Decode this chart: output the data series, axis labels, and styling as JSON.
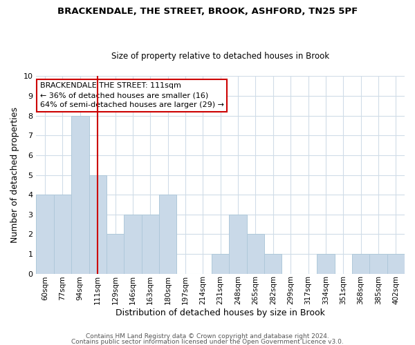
{
  "title": "BRACKENDALE, THE STREET, BROOK, ASHFORD, TN25 5PF",
  "subtitle": "Size of property relative to detached houses in Brook",
  "xlabel": "Distribution of detached houses by size in Brook",
  "ylabel": "Number of detached properties",
  "bar_labels": [
    "60sqm",
    "77sqm",
    "94sqm",
    "111sqm",
    "129sqm",
    "146sqm",
    "163sqm",
    "180sqm",
    "197sqm",
    "214sqm",
    "231sqm",
    "248sqm",
    "265sqm",
    "282sqm",
    "299sqm",
    "317sqm",
    "334sqm",
    "351sqm",
    "368sqm",
    "385sqm",
    "402sqm"
  ],
  "bar_values": [
    4,
    4,
    8,
    5,
    2,
    3,
    3,
    4,
    0,
    0,
    1,
    3,
    2,
    1,
    0,
    0,
    1,
    0,
    1,
    1,
    1
  ],
  "bar_color": "#c9d9e8",
  "bar_edge_color": "#afc8da",
  "vline_x_idx": 3,
  "vline_color": "#cc0000",
  "ylim": [
    0,
    10
  ],
  "yticks": [
    0,
    1,
    2,
    3,
    4,
    5,
    6,
    7,
    8,
    9,
    10
  ],
  "annotation_title": "BRACKENDALE THE STREET: 111sqm",
  "annotation_line1": "← 36% of detached houses are smaller (16)",
  "annotation_line2": "64% of semi-detached houses are larger (29) →",
  "annotation_box_color": "#ffffff",
  "annotation_box_edge": "#cc0000",
  "footer1": "Contains HM Land Registry data © Crown copyright and database right 2024.",
  "footer2": "Contains public sector information licensed under the Open Government Licence v3.0.",
  "grid_color": "#d0dce8",
  "background_color": "#ffffff",
  "title_fontsize": 9.5,
  "subtitle_fontsize": 8.5,
  "xlabel_fontsize": 9,
  "ylabel_fontsize": 9,
  "tick_fontsize": 8,
  "annot_fontsize": 8,
  "footer_fontsize": 6.5
}
